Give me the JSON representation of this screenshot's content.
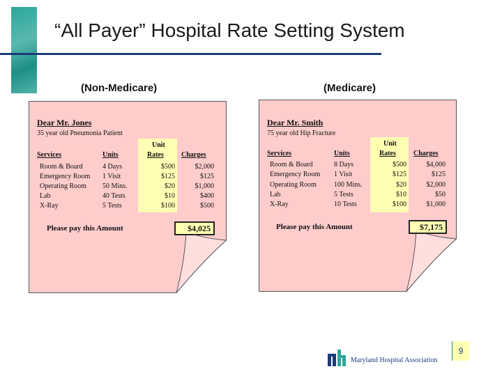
{
  "slide": {
    "title": "“All Payer” Hospital Rate Setting System",
    "page_number": "9",
    "colors": {
      "accent": "#1e8f86",
      "rule": "#1e3a78",
      "paper": "#ffcccc",
      "highlight": "#ffffb3"
    }
  },
  "left_bill": {
    "heading": "(Non-Medicare)",
    "dear": "Dear Mr. Jones",
    "patient": "35 year old Pneumonia Patient",
    "headers": {
      "services": "Services",
      "units": "Units",
      "unit": "Unit",
      "rates": "Rates",
      "charges": "Charges"
    },
    "rows": [
      {
        "service": "Room & Board",
        "units": "4 Days",
        "rate": "$500",
        "charge": "$2,000"
      },
      {
        "service": "Emergency Room",
        "units": "1 Visit",
        "rate": "$125",
        "charge": "$125"
      },
      {
        "service": "Operating Room",
        "units": "50 Mins.",
        "rate": "$20",
        "charge": "$1,000"
      },
      {
        "service": "Lab",
        "units": "40 Tests",
        "rate": "$10",
        "charge": "$400"
      },
      {
        "service": "X-Ray",
        "units": "5 Tests",
        "rate": "$100",
        "charge": "$500"
      }
    ],
    "pay_label": "Please pay this Amount",
    "total": "$4,025"
  },
  "right_bill": {
    "heading": "(Medicare)",
    "dear": "Dear Mr. Smith",
    "patient": "75 year old Hip Fracture",
    "headers": {
      "services": "Services",
      "units": "Units",
      "unit": "Unit",
      "rates": "Rates",
      "charges": "Charges"
    },
    "rows": [
      {
        "service": "Room & Board",
        "units": "8 Days",
        "rate": "$500",
        "charge": "$4,000"
      },
      {
        "service": "Emergency Room",
        "units": "1 Visit",
        "rate": "$125",
        "charge": "$125"
      },
      {
        "service": "Operating Room",
        "units": "100 Mins.",
        "rate": "$20",
        "charge": "$2,000"
      },
      {
        "service": "Lab",
        "units": "5 Tests",
        "rate": "$10",
        "charge": "$50"
      },
      {
        "service": "X-Ray",
        "units": "10 Tests",
        "rate": "$100",
        "charge": "$1,000"
      }
    ],
    "pay_label": "Please pay this Amount",
    "total": "$7,175"
  },
  "footer": {
    "logo_text": "Maryland Hospital Association",
    "logo_icon": "mha-logo-icon"
  }
}
